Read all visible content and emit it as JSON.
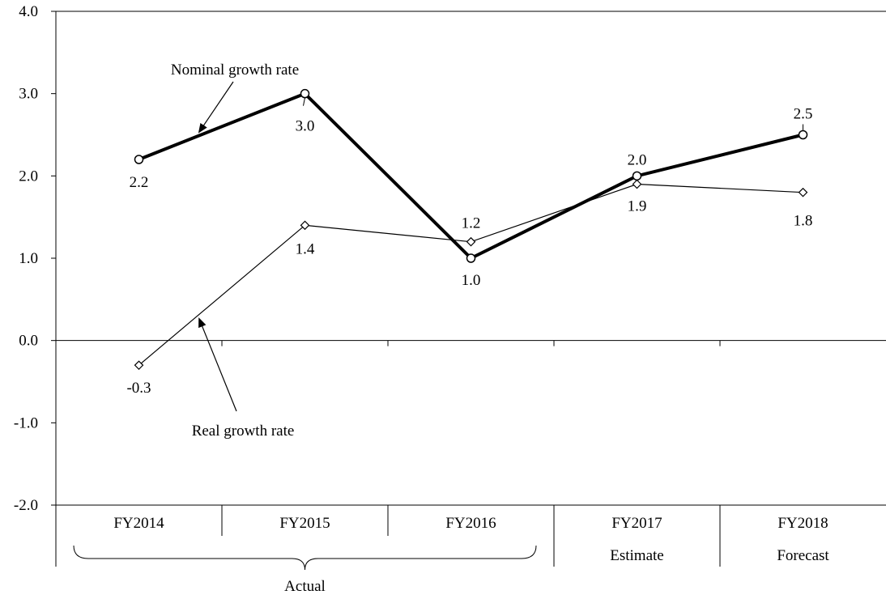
{
  "chart_data": {
    "type": "line",
    "categories": [
      "FY2014",
      "FY2015",
      "FY2016",
      "FY2017",
      "FY2018"
    ],
    "ylim": [
      -2.0,
      4.0
    ],
    "yticks": [
      "-2.0",
      "-1.0",
      "0.0",
      "1.0",
      "2.0",
      "3.0",
      "4.0"
    ],
    "grid": false,
    "series": [
      {
        "name": "Nominal growth rate",
        "values": [
          2.2,
          3.0,
          1.0,
          2.0,
          2.5
        ],
        "labels": [
          "2.2",
          "3.0",
          "1.0",
          "2.0",
          "2.5"
        ],
        "color": "#000000",
        "marker": "circle"
      },
      {
        "name": "Real growth rate",
        "values": [
          -0.3,
          1.4,
          1.2,
          1.9,
          1.8
        ],
        "labels": [
          "-0.3",
          "1.4",
          "1.2",
          "1.9",
          "1.8"
        ],
        "color": "#000000",
        "marker": "diamond"
      }
    ],
    "groups": [
      {
        "label": "Actual",
        "from": "FY2014",
        "to": "FY2016"
      },
      {
        "label": "Estimate",
        "from": "FY2017",
        "to": "FY2017"
      },
      {
        "label": "Forecast",
        "from": "FY2018",
        "to": "FY2018"
      }
    ]
  }
}
